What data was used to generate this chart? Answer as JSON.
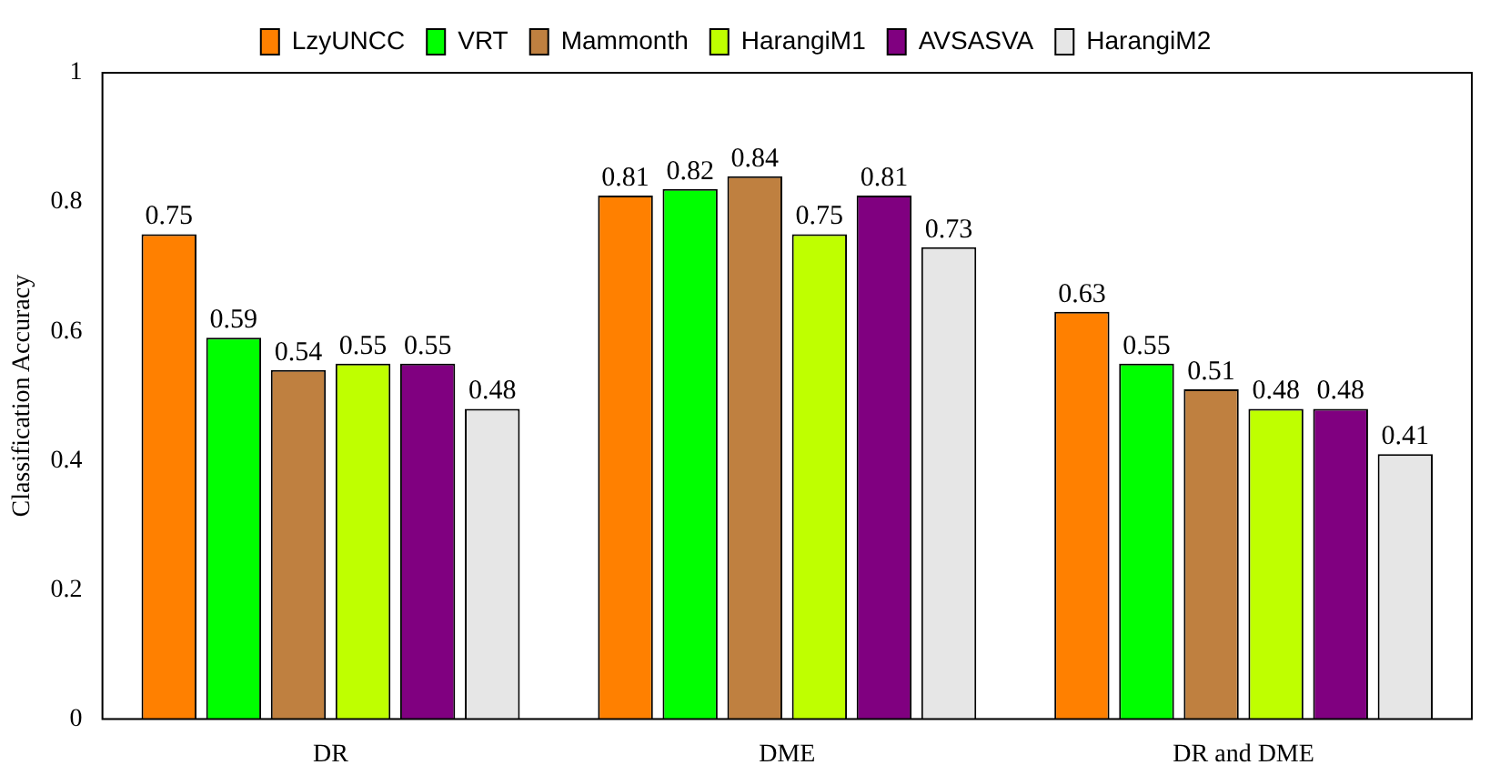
{
  "chart_data": {
    "type": "bar",
    "ylabel": "Classification Accuracy",
    "categories": [
      "DR",
      "DME",
      "DR and DME"
    ],
    "series": [
      {
        "name": "LzyUNCC",
        "color": "#ff8000",
        "values": [
          0.75,
          0.81,
          0.63
        ]
      },
      {
        "name": "VRT",
        "color": "#00ff00",
        "values": [
          0.59,
          0.82,
          0.55
        ]
      },
      {
        "name": "Mammonth",
        "color": "#bf8040",
        "values": [
          0.54,
          0.84,
          0.51
        ]
      },
      {
        "name": "HarangiM1",
        "color": "#bfff00",
        "values": [
          0.55,
          0.75,
          0.48
        ]
      },
      {
        "name": "AVSASVA",
        "color": "#800080",
        "values": [
          0.55,
          0.81,
          0.48
        ]
      },
      {
        "name": "HarangiM2",
        "color": "#e6e6e6",
        "values": [
          0.48,
          0.73,
          0.41
        ]
      }
    ],
    "ylim": [
      0,
      1
    ],
    "yticks": [
      0,
      0.2,
      0.4,
      0.6,
      0.8,
      1
    ],
    "grid": false,
    "legend": "top",
    "data_labels": true
  }
}
